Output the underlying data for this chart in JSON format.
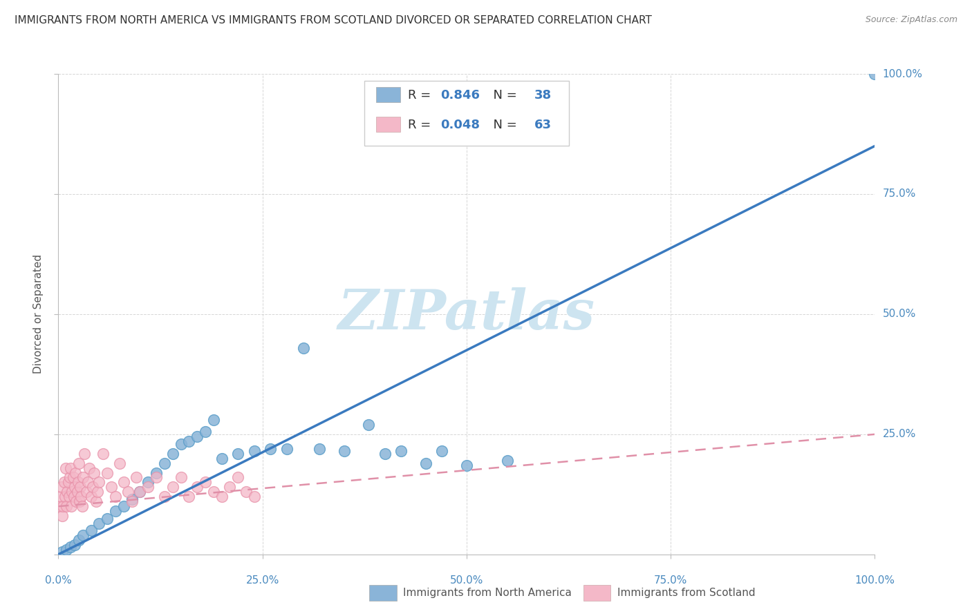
{
  "title": "IMMIGRANTS FROM NORTH AMERICA VS IMMIGRANTS FROM SCOTLAND DIVORCED OR SEPARATED CORRELATION CHART",
  "source": "Source: ZipAtlas.com",
  "ylabel": "Divorced or Separated",
  "xlim": [
    0.0,
    1.0
  ],
  "ylim": [
    0.0,
    1.0
  ],
  "xticks": [
    0.0,
    0.25,
    0.5,
    0.75,
    1.0
  ],
  "yticks": [
    0.0,
    0.25,
    0.5,
    0.75,
    1.0
  ],
  "xticklabels": [
    "0.0%",
    "25.0%",
    "50.0%",
    "75.0%",
    "100.0%"
  ],
  "yticklabels": [
    "",
    "25.0%",
    "50.0%",
    "75.0%",
    "100.0%"
  ],
  "blue_R": 0.846,
  "blue_N": 38,
  "pink_R": 0.048,
  "pink_N": 63,
  "blue_color": "#8ab4d8",
  "blue_edge_color": "#5b9ec9",
  "pink_color": "#f4b8c8",
  "pink_edge_color": "#e890a8",
  "blue_line_color": "#3a7abf",
  "pink_line_color": "#e090a8",
  "watermark": "ZIPatlas",
  "watermark_color": "#cde4f0",
  "legend_label_blue": "Immigrants from North America",
  "legend_label_pink": "Immigrants from Scotland",
  "blue_scatter_x": [
    0.005,
    0.01,
    0.015,
    0.02,
    0.025,
    0.03,
    0.04,
    0.05,
    0.06,
    0.07,
    0.08,
    0.09,
    0.1,
    0.11,
    0.12,
    0.13,
    0.14,
    0.15,
    0.16,
    0.17,
    0.18,
    0.19,
    0.2,
    0.22,
    0.24,
    0.26,
    0.28,
    0.3,
    0.32,
    0.35,
    0.38,
    0.4,
    0.42,
    0.45,
    0.47,
    0.5,
    0.55,
    1.0
  ],
  "blue_scatter_y": [
    0.005,
    0.01,
    0.015,
    0.02,
    0.03,
    0.04,
    0.05,
    0.065,
    0.075,
    0.09,
    0.1,
    0.115,
    0.13,
    0.15,
    0.17,
    0.19,
    0.21,
    0.23,
    0.235,
    0.245,
    0.255,
    0.28,
    0.2,
    0.21,
    0.215,
    0.22,
    0.22,
    0.43,
    0.22,
    0.215,
    0.27,
    0.21,
    0.215,
    0.19,
    0.215,
    0.185,
    0.195,
    1.0
  ],
  "pink_scatter_x": [
    0.002,
    0.003,
    0.004,
    0.005,
    0.006,
    0.007,
    0.008,
    0.009,
    0.01,
    0.011,
    0.012,
    0.013,
    0.014,
    0.015,
    0.016,
    0.017,
    0.018,
    0.019,
    0.02,
    0.021,
    0.022,
    0.023,
    0.024,
    0.025,
    0.026,
    0.027,
    0.028,
    0.029,
    0.03,
    0.032,
    0.034,
    0.036,
    0.038,
    0.04,
    0.042,
    0.044,
    0.046,
    0.048,
    0.05,
    0.055,
    0.06,
    0.065,
    0.07,
    0.075,
    0.08,
    0.085,
    0.09,
    0.095,
    0.1,
    0.11,
    0.12,
    0.13,
    0.14,
    0.15,
    0.16,
    0.17,
    0.18,
    0.19,
    0.2,
    0.21,
    0.22,
    0.23,
    0.24
  ],
  "pink_scatter_y": [
    0.1,
    0.12,
    0.14,
    0.08,
    0.1,
    0.15,
    0.12,
    0.18,
    0.1,
    0.13,
    0.15,
    0.12,
    0.16,
    0.18,
    0.1,
    0.13,
    0.16,
    0.12,
    0.14,
    0.17,
    0.11,
    0.13,
    0.15,
    0.19,
    0.11,
    0.14,
    0.12,
    0.1,
    0.16,
    0.21,
    0.13,
    0.15,
    0.18,
    0.12,
    0.14,
    0.17,
    0.11,
    0.13,
    0.15,
    0.21,
    0.17,
    0.14,
    0.12,
    0.19,
    0.15,
    0.13,
    0.11,
    0.16,
    0.13,
    0.14,
    0.16,
    0.12,
    0.14,
    0.16,
    0.12,
    0.14,
    0.15,
    0.13,
    0.12,
    0.14,
    0.16,
    0.13,
    0.12
  ],
  "blue_line_x0": 0.0,
  "blue_line_y0": 0.0,
  "blue_line_x1": 1.0,
  "blue_line_y1": 0.85,
  "pink_line_x0": 0.0,
  "pink_line_y0": 0.1,
  "pink_line_x1": 1.0,
  "pink_line_y1": 0.25
}
